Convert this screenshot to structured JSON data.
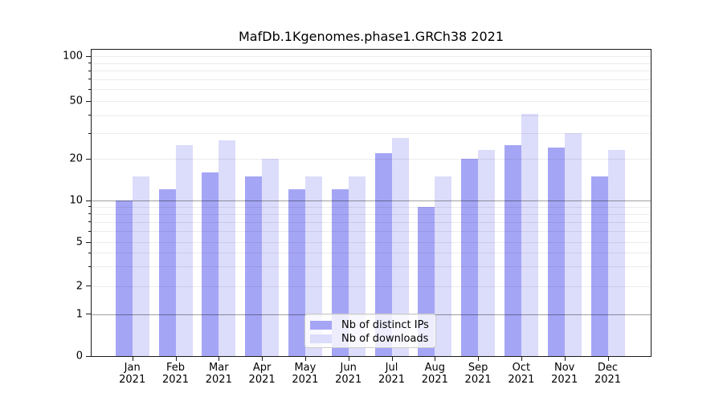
{
  "title": "MafDb.1Kgenomes.phase1.GRCh38 2021",
  "chart_data": {
    "type": "bar",
    "title": "MafDb.1Kgenomes.phase1.GRCh38 2021",
    "categories": [
      "Jan",
      "Feb",
      "Mar",
      "Apr",
      "May",
      "Jun",
      "Jul",
      "Aug",
      "Sep",
      "Oct",
      "Nov",
      "Dec"
    ],
    "year_label": "2021",
    "series": [
      {
        "name": "Nb of distinct IPs",
        "color": "#a5a5f6",
        "values": [
          10,
          12,
          16,
          15,
          12,
          12,
          22,
          9,
          20,
          25,
          24,
          15
        ]
      },
      {
        "name": "Nb of downloads",
        "color": "#dcdcfb",
        "values": [
          15,
          25,
          27,
          20,
          15,
          15,
          28,
          15,
          23,
          41,
          30,
          23
        ]
      }
    ],
    "xlabel": "",
    "ylabel": "",
    "scale": "symlog",
    "yticks": [
      0,
      1,
      2,
      5,
      10,
      20,
      50,
      100
    ],
    "minor_ticks": [
      3,
      4,
      6,
      7,
      8,
      9,
      30,
      40,
      60,
      70,
      80,
      90
    ],
    "emphasized_gridlines": [
      1,
      10
    ],
    "ylim": [
      0,
      110
    ],
    "grid": "both",
    "legend_position": "lower center"
  }
}
